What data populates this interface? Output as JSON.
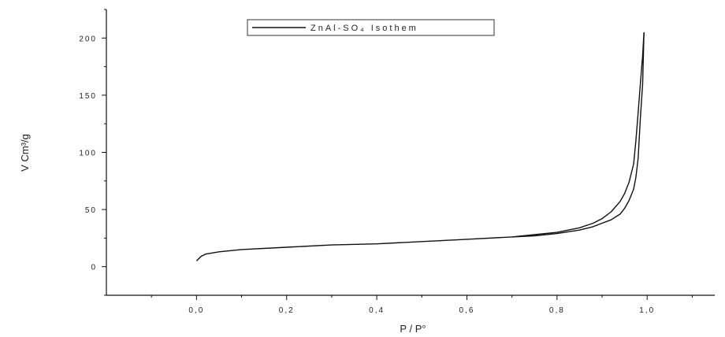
{
  "chart_data": {
    "type": "line",
    "title": "",
    "xlabel": "P / P°",
    "ylabel": "V Cm³/g",
    "xlim": [
      -0.2,
      1.15
    ],
    "ylim": [
      -25,
      225
    ],
    "x_ticks": [
      0.0,
      0.2,
      0.4,
      0.6,
      0.8,
      1.0
    ],
    "x_tick_labels": [
      "0,0",
      "0,2",
      "0,4",
      "0,6",
      "0,8",
      "1,0"
    ],
    "y_ticks": [
      0,
      50,
      100,
      150,
      200
    ],
    "y_tick_labels": [
      "0",
      "50",
      "100",
      "150",
      "200"
    ],
    "grid": false,
    "legend_position": "top-center",
    "line_color": "#111111",
    "series": [
      {
        "name": "ZnAl-SO₄ Isothem",
        "x": [
          0.0,
          0.01,
          0.02,
          0.05,
          0.1,
          0.2,
          0.3,
          0.4,
          0.5,
          0.6,
          0.7,
          0.75,
          0.8,
          0.85,
          0.88,
          0.9,
          0.92,
          0.94,
          0.95,
          0.96,
          0.97,
          0.975,
          0.98,
          0.985,
          0.99,
          0.993
        ],
        "y": [
          5,
          9,
          11,
          13,
          15,
          17,
          19,
          20,
          22,
          24,
          26,
          28,
          30,
          34,
          38,
          42,
          48,
          57,
          64,
          74,
          90,
          110,
          135,
          160,
          185,
          205
        ]
      },
      {
        "name": "",
        "x": [
          0.993,
          0.99,
          0.985,
          0.98,
          0.975,
          0.97,
          0.96,
          0.95,
          0.94,
          0.92,
          0.9,
          0.88,
          0.85,
          0.8,
          0.75,
          0.7
        ],
        "y": [
          205,
          160,
          130,
          95,
          78,
          68,
          58,
          51,
          46,
          41,
          38,
          35,
          32,
          29,
          27,
          26
        ]
      }
    ]
  }
}
